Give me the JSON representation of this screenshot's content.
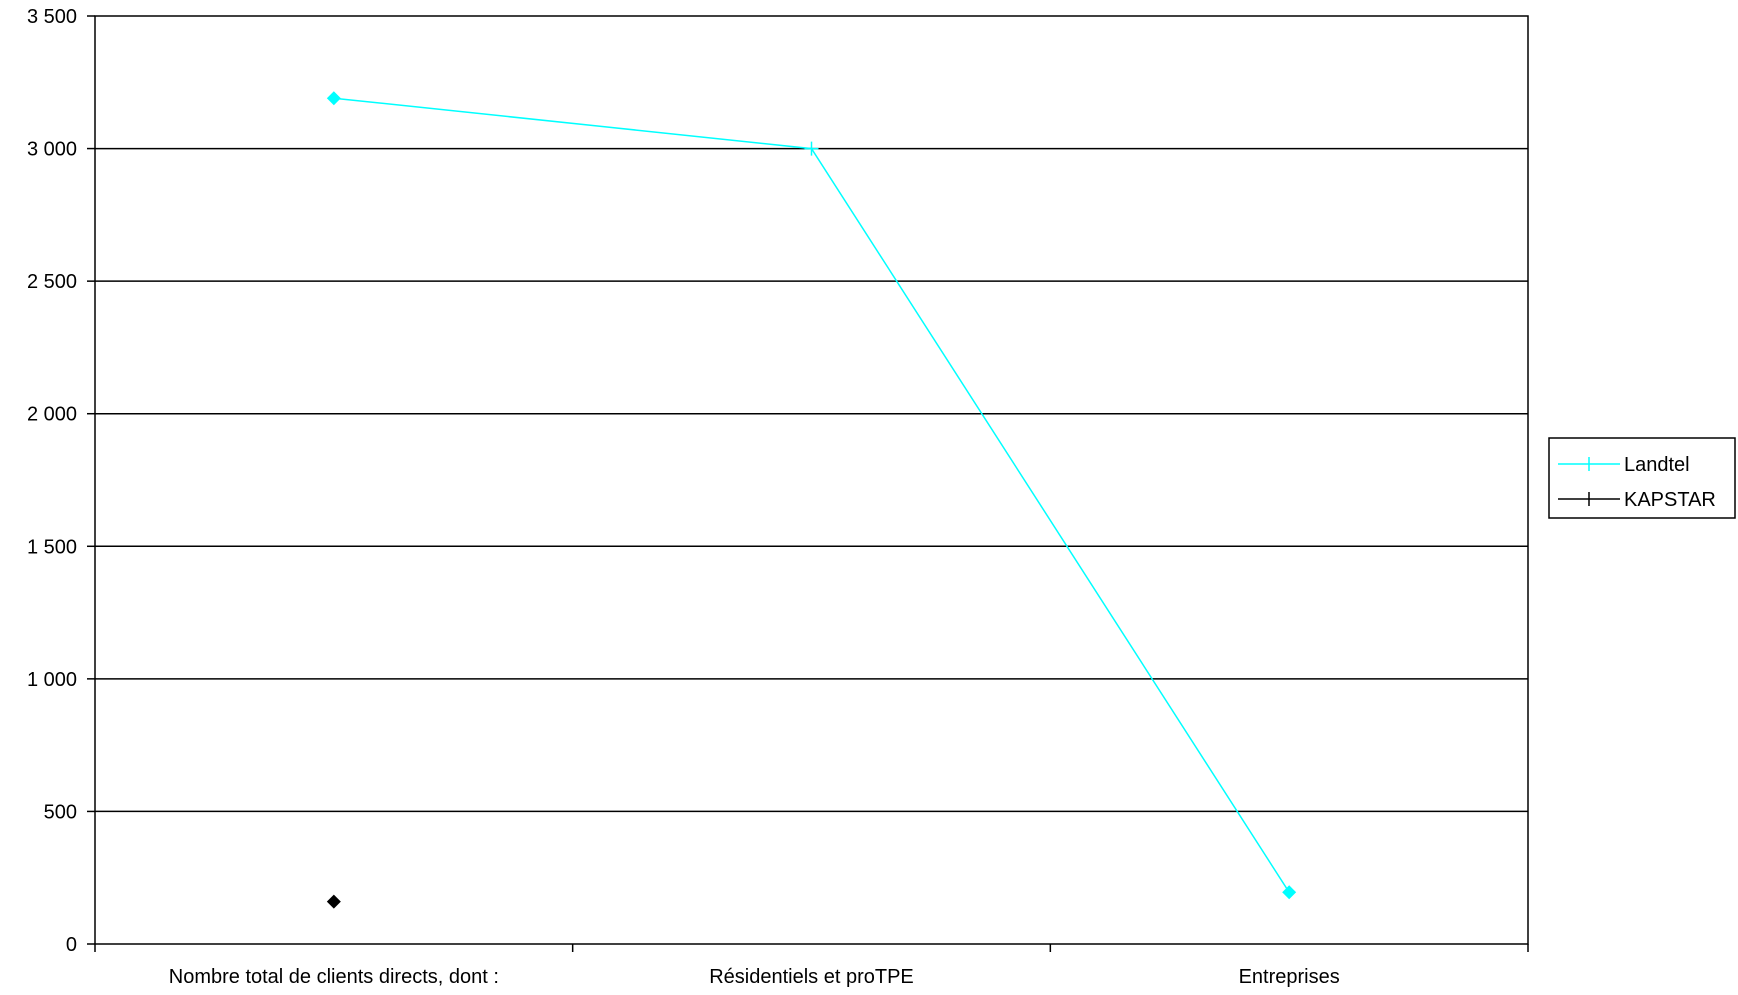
{
  "chart_data": {
    "type": "line",
    "title": "",
    "xlabel": "",
    "ylabel": "",
    "categories": [
      "Nombre total de clients directs, dont :",
      "Résidentiels et proTPE",
      "Entreprises"
    ],
    "series": [
      {
        "name": "Landtel",
        "color": "#00ffff",
        "values": [
          3190,
          3000,
          195
        ]
      },
      {
        "name": "KAPSTAR",
        "color": "#000000",
        "values": [
          160,
          null,
          null
        ]
      }
    ],
    "ylim": [
      0,
      3500
    ],
    "yticks": [
      0,
      500,
      1000,
      1500,
      2000,
      2500,
      3000,
      3500
    ],
    "ytick_labels": [
      "0",
      "500",
      "1 000",
      "1 500",
      "2 000",
      "2 500",
      "3 000",
      "3 500"
    ],
    "grid": true,
    "legend_position": "right"
  }
}
